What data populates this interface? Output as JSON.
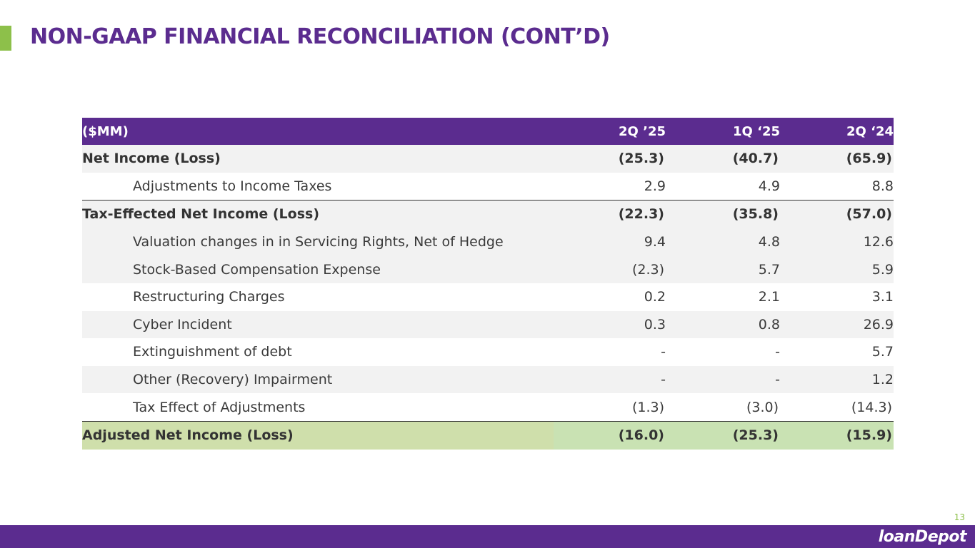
{
  "slide": {
    "title": "NON-GAAP FINANCIAL RECONCILIATION (CONT’D)",
    "page_number": "13",
    "logo_text": "loanDepot",
    "accent_color": "#8dc04a",
    "brand_color": "#5b2c8f"
  },
  "table": {
    "headers": [
      "($MM)",
      "2Q ’25",
      "1Q ‘25",
      "2Q ‘24"
    ],
    "rows": [
      {
        "label": "Net Income (Loss)",
        "v1": "(25.3)",
        "v2": "(40.7)",
        "v3": "(65.9)"
      },
      {
        "label": "Adjustments to Income Taxes",
        "v1": "2.9",
        "v2": "4.9",
        "v3": "8.8"
      },
      {
        "label": "Tax-Effected Net  Income (Loss)",
        "v1": "(22.3)",
        "v2": "(35.8)",
        "v3": "(57.0)"
      },
      {
        "label": "Valuation changes in in Servicing Rights, Net of Hedge",
        "v1": "9.4",
        "v2": "4.8",
        "v3": "12.6"
      },
      {
        "label": "Stock-Based Compensation Expense",
        "v1": "(2.3)",
        "v2": "5.7",
        "v3": "5.9"
      },
      {
        "label": "Restructuring Charges",
        "v1": "0.2",
        "v2": "2.1",
        "v3": "3.1"
      },
      {
        "label": "Cyber Incident",
        "v1": "0.3",
        "v2": "0.8",
        "v3": "26.9"
      },
      {
        "label": "Extinguishment of debt",
        "v1": "-",
        "v2": "-",
        "v3": "5.7"
      },
      {
        "label": "Other (Recovery) Impairment",
        "v1": "-",
        "v2": "-",
        "v3": "1.2"
      },
      {
        "label": "Tax Effect of Adjustments",
        "v1": "(1.3)",
        "v2": "(3.0)",
        "v3": "(14.3)"
      },
      {
        "label": "Adjusted Net Income (Loss)",
        "v1": "(16.0)",
        "v2": "(25.3)",
        "v3": "(15.9)"
      }
    ]
  }
}
